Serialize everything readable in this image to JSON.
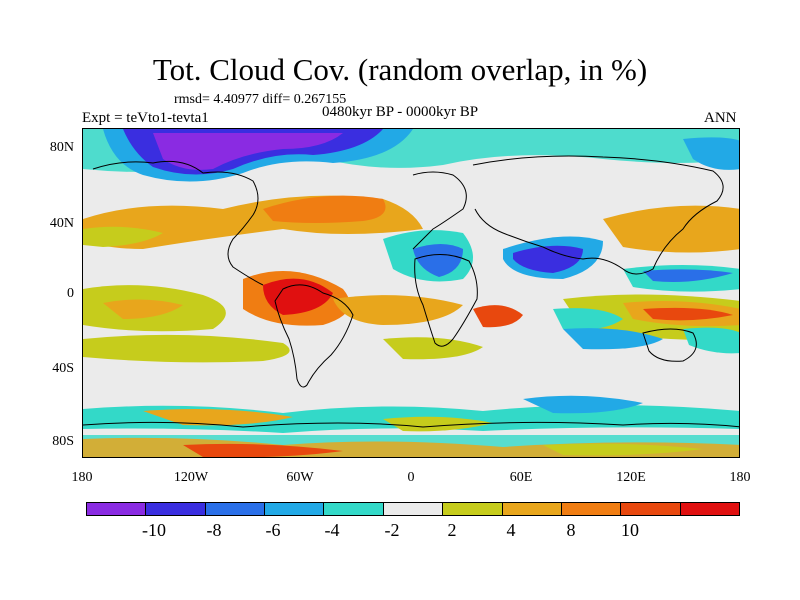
{
  "title": "Tot. Cloud Cov. (random overlap, in %)",
  "rmsd_text": "rmsd= 4.40977 diff= 0.267155",
  "period_text": "0480kyr BP - 0000kyr BP",
  "experiment_text": "Expt = teVto1-tevta1",
  "season_text": "ANN",
  "y_axis_labels": [
    "80N",
    "40N",
    "0",
    "40S",
    "80S"
  ],
  "x_axis_labels": [
    "180",
    "120W",
    "60W",
    "0",
    "60E",
    "120E",
    "180"
  ],
  "colorbar": {
    "colors": [
      "#8a2be2",
      "#3a2ee0",
      "#2a6fe8",
      "#22a9e6",
      "#33d9c8",
      "#ebebeb",
      "#c6cc1c",
      "#e8a61c",
      "#f07d12",
      "#e8480e",
      "#e01010"
    ],
    "labels": [
      "-10",
      "-8",
      "-6",
      "-4",
      "-2",
      "2",
      "4",
      "8",
      "10"
    ]
  }
}
